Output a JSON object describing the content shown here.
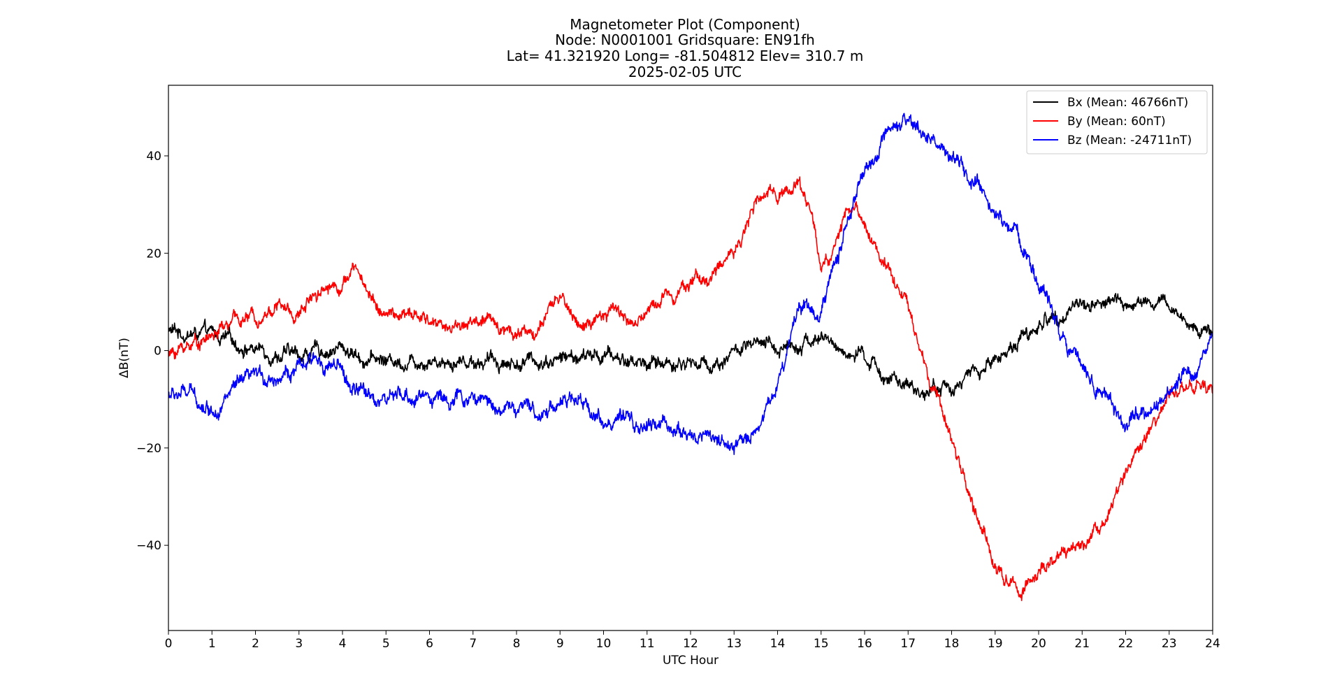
{
  "chart_data": {
    "type": "line",
    "title_lines": [
      "Magnetometer Plot (Component)",
      "Node:  N0001001     Gridsquare:  EN91fh",
      "Lat= 41.321920    Long= -81.504812    Elev= 310.7 m",
      "2025-02-05  UTC"
    ],
    "xlabel": "UTC Hour",
    "ylabel": "ΔB(nT)",
    "xlim": [
      0,
      24
    ],
    "ylim": [
      -57.5,
      54.5
    ],
    "xticks": [
      0,
      1,
      2,
      3,
      4,
      5,
      6,
      7,
      8,
      9,
      10,
      11,
      12,
      13,
      14,
      15,
      16,
      17,
      18,
      19,
      20,
      21,
      22,
      23,
      24
    ],
    "yticks": [
      -40,
      -20,
      0,
      20,
      40
    ],
    "ytick_labels": [
      "−40",
      "−20",
      "0",
      "20",
      "40"
    ],
    "grid": false,
    "legend_position": "top-right",
    "series": [
      {
        "name": "Bx (Mean: 46766nT)",
        "color": "#000000",
        "noise": 1.3,
        "x": [
          0,
          0.5,
          1,
          1.5,
          2,
          2.5,
          3,
          3.5,
          4,
          4.5,
          5,
          5.5,
          6,
          6.5,
          7,
          7.5,
          8,
          8.5,
          9,
          9.5,
          10,
          10.5,
          11,
          11.5,
          12,
          12.5,
          12.7,
          13,
          13.5,
          14,
          14.5,
          15,
          15.5,
          16,
          16.5,
          17,
          17.5,
          18,
          18.5,
          19,
          19.5,
          20,
          20.5,
          21,
          21.5,
          22,
          22.5,
          23,
          23.5,
          24
        ],
        "y": [
          4,
          3.5,
          3,
          1.5,
          0.5,
          -0.5,
          -1,
          0,
          0.5,
          -1.5,
          -2,
          -2,
          -1.5,
          -2,
          -2,
          -2,
          -2.5,
          -2,
          -1.5,
          -1.5,
          -1,
          -2,
          -2.5,
          -2.5,
          -2.5,
          -3,
          -2,
          0,
          0.5,
          0.5,
          2,
          2.5,
          0,
          -2,
          -5,
          -8.5,
          -8,
          -7.5,
          -5,
          -2,
          2,
          5,
          8,
          9.5,
          10,
          9.5,
          9.5,
          9,
          5,
          4
        ]
      },
      {
        "name": "By (Mean: 60nT)",
        "color": "#ff0000",
        "noise": 1.2,
        "x": [
          0,
          0.5,
          1,
          1.5,
          2,
          2.5,
          3,
          3.3,
          3.6,
          4,
          4.3,
          4.6,
          5,
          5.5,
          6,
          6.5,
          7,
          7.5,
          8,
          8.5,
          9,
          9.5,
          10,
          10.3,
          10.6,
          10.8,
          11.2,
          11.5,
          12,
          12.5,
          13,
          13.5,
          14,
          14.5,
          14.8,
          15,
          15.2,
          15.5,
          15.8,
          16.2,
          16.6,
          17,
          17.5,
          18,
          18.5,
          19,
          19.2,
          19.5,
          20,
          20.5,
          21,
          21.5,
          22,
          22.5,
          23,
          23.5,
          24
        ],
        "y": [
          -1,
          1.5,
          3,
          6,
          7,
          9.5,
          7,
          12,
          13.5,
          14,
          17,
          12,
          7,
          7,
          6,
          5,
          6,
          5.5,
          4,
          4,
          11,
          5,
          6,
          9,
          6,
          5.5,
          10,
          12,
          14.5,
          15,
          21,
          30,
          33,
          34,
          28,
          17,
          19,
          27,
          29,
          22,
          17,
          9,
          -7,
          -18,
          -32,
          -44,
          -47,
          -49,
          -46,
          -43,
          -40,
          -34,
          -26,
          -18,
          -10,
          -6,
          -9
        ]
      },
      {
        "name": "Bz (Mean: -24711nT)",
        "color": "#0000ff",
        "noise": 1.4,
        "x": [
          0,
          0.5,
          1,
          1.5,
          2,
          2.5,
          3,
          3.5,
          3.8,
          4,
          4.2,
          4.5,
          5,
          5.5,
          6,
          6.5,
          7,
          7.5,
          8,
          8.5,
          9,
          9.5,
          10,
          10.5,
          11,
          11.5,
          12,
          12.5,
          13,
          13.5,
          14,
          14.2,
          14.5,
          15,
          15.3,
          15.6,
          16,
          16.5,
          17,
          17.5,
          18,
          18.5,
          19,
          19.5,
          20,
          20.5,
          21,
          21.5,
          22,
          22.5,
          23,
          23.5,
          24
        ],
        "y": [
          -9,
          -9,
          -12,
          -8,
          -6,
          -5,
          -4,
          -2,
          -3,
          -5,
          -8,
          -9,
          -10,
          -10,
          -9,
          -10,
          -10,
          -11,
          -12,
          -13,
          -10,
          -11,
          -14,
          -15,
          -16,
          -15,
          -18,
          -17,
          -21,
          -16,
          -7,
          0,
          10,
          8,
          17,
          27,
          36,
          43,
          46,
          44,
          39,
          34,
          28,
          24,
          14,
          5,
          -3,
          -9,
          -15,
          -13,
          -10,
          -4,
          3
        ]
      }
    ]
  }
}
